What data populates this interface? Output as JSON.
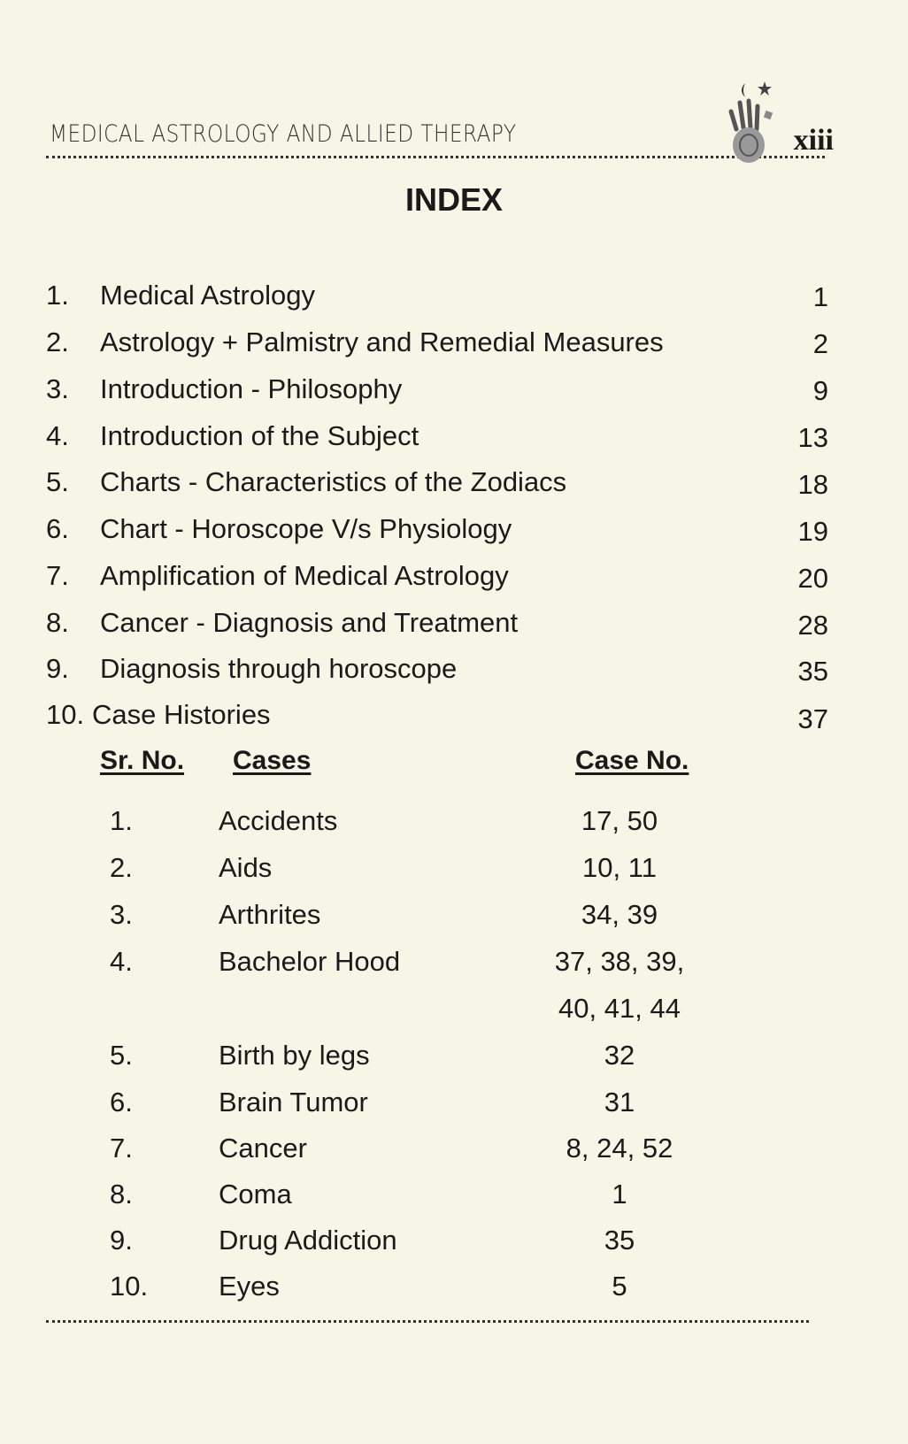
{
  "header": {
    "running_title": "MEDICAL ASTROLOGY AND ALLIED THERAPY",
    "page_number": "xiii",
    "logo": "hand-moon-star-logo"
  },
  "title": "INDEX",
  "entries": [
    {
      "num": "1.",
      "text": "Medical Astrology",
      "page": "1"
    },
    {
      "num": "2.",
      "text": "Astrology + Palmistry and Remedial Measures",
      "page": "2"
    },
    {
      "num": "3.",
      "text": "Introduction - Philosophy",
      "page": "9"
    },
    {
      "num": "4.",
      "text": "Introduction of the Subject",
      "page": "13"
    },
    {
      "num": "5.",
      "text": "Charts - Characteristics of the Zodiacs",
      "page": "18"
    },
    {
      "num": "6.",
      "text": "Chart - Horoscope V/s Physiology",
      "page": "19"
    },
    {
      "num": "7.",
      "text": "Amplification of Medical Astrology",
      "page": "20"
    },
    {
      "num": "8.",
      "text": "Cancer - Diagnosis and Treatment",
      "page": "28"
    },
    {
      "num": "9.",
      "text": "Diagnosis through horoscope",
      "page": "35"
    },
    {
      "num": "10.",
      "text": "Case Histories",
      "page": "37"
    }
  ],
  "cases_table": {
    "headers": {
      "sr_no": "Sr. No.",
      "cases": "Cases",
      "case_no": "Case No."
    },
    "rows": [
      {
        "sr": "1.",
        "case": "Accidents",
        "case_no": "17, 50"
      },
      {
        "sr": "2.",
        "case": "Aids",
        "case_no": "10, 11"
      },
      {
        "sr": "3.",
        "case": "Arthrites",
        "case_no": "34, 39"
      },
      {
        "sr": "4.",
        "case": "Bachelor Hood",
        "case_no": "37, 38, 39,",
        "case_no_cont": "40, 41, 44"
      },
      {
        "sr": "5.",
        "case": "Birth by legs",
        "case_no": "32"
      },
      {
        "sr": "6.",
        "case": "Brain Tumor",
        "case_no": "31"
      },
      {
        "sr": "7.",
        "case": "Cancer",
        "case_no": "8, 24, 52"
      },
      {
        "sr": "8.",
        "case": "Coma",
        "case_no": "1"
      },
      {
        "sr": "9.",
        "case": "Drug Addiction",
        "case_no": "35"
      },
      {
        "sr": "10.",
        "case": "Eyes",
        "case_no": "5"
      }
    ]
  }
}
